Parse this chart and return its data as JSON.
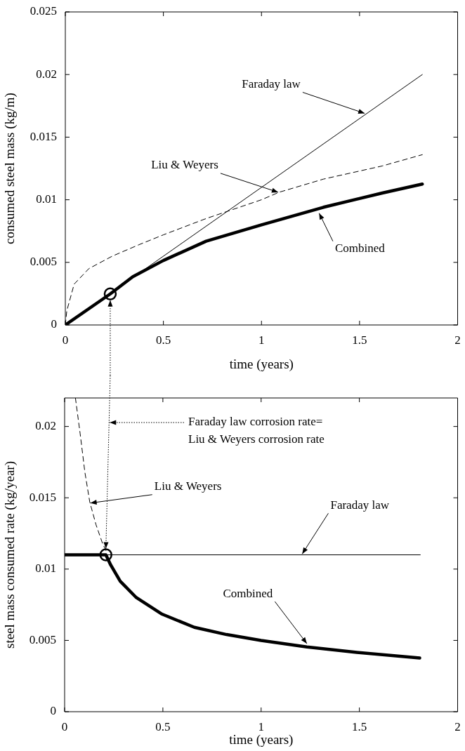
{
  "chart_data": [
    {
      "type": "line",
      "xlabel": "time (years)",
      "ylabel": "consumed steel mass (kg/m)",
      "xlim": [
        0,
        2
      ],
      "ylim": [
        0,
        0.025
      ],
      "xticks": [
        0,
        0.5,
        1,
        1.5,
        2
      ],
      "yticks": [
        0,
        0.005,
        0.01,
        0.015,
        0.02,
        0.025
      ],
      "grid": false,
      "legend": false,
      "series": [
        {
          "color": "#000000",
          "line_style": "solid",
          "marker": "none",
          "x": [
            0,
            1.82
          ],
          "values": [
            0,
            0.02
          ]
        },
        {
          "color": "#000000",
          "line_style": "dashed",
          "marker": "none",
          "x": [
            0,
            0.0075,
            0.045,
            0.12,
            0.24,
            0.374,
            0.5,
            0.718,
            1.0,
            1.09,
            1.316,
            1.616,
            1.82
          ],
          "values": [
            0,
            0.00113,
            0.00326,
            0.0045,
            0.0055,
            0.0064,
            0.0072,
            0.0085,
            0.01,
            0.0106,
            0.01165,
            0.0127,
            0.0136
          ]
        },
        {
          "color": "#000000",
          "line_style": "solid",
          "marker": "none",
          "x": [
            0,
            0.229,
            0.344,
            0.5,
            0.718,
            1.0,
            1.316,
            1.616,
            1.82
          ],
          "values": [
            0,
            0.00248,
            0.00385,
            0.00515,
            0.00669,
            0.00799,
            0.0094,
            0.01054,
            0.01125
          ]
        },
        {
          "type": "scatter",
          "color": "#000000",
          "marker": "circle",
          "x": [
            0.229
          ],
          "values": [
            0.00248
          ]
        }
      ],
      "annotations": [
        {
          "text": "Faraday law",
          "x": 1.526,
          "y": 0.0169
        },
        {
          "text": "Liu & Weyers",
          "x": 1.085,
          "y": 0.0106
        },
        {
          "text": "Combined",
          "x": 1.294,
          "y": 0.00893
        }
      ]
    },
    {
      "type": "line",
      "xlabel": "time (years)",
      "ylabel": "steel mass consumed rate (kg/year)",
      "xlim": [
        0,
        2
      ],
      "ylim": [
        0,
        0.022
      ],
      "xticks": [
        0,
        0.5,
        1,
        1.5,
        2
      ],
      "yticks": [
        0,
        0.005,
        0.01,
        0.015,
        0.02
      ],
      "grid": false,
      "legend": false,
      "series": [
        {
          "color": "#000000",
          "line_style": "solid",
          "marker": "none",
          "x": [
            0,
            1.81
          ],
          "values": [
            0.011,
            0.011
          ]
        },
        {
          "color": "#000000",
          "line_style": "dashed",
          "marker": "none",
          "x": [
            0.055,
            0.079,
            0.103,
            0.128,
            0.16,
            0.193,
            0.21
          ],
          "values": [
            0.022,
            0.0195,
            0.0168,
            0.0147,
            0.0131,
            0.0118,
            0.0113
          ]
        },
        {
          "color": "#000000",
          "line_style": "solid",
          "marker": "none",
          "x": [
            0,
            0.21,
            0.234,
            0.283,
            0.365,
            0.496,
            0.66,
            0.824,
            1.0,
            1.233,
            1.479,
            1.807
          ],
          "values": [
            0.011,
            0.011,
            0.0103,
            0.00915,
            0.008,
            0.00684,
            0.00592,
            0.00541,
            0.005,
            0.00454,
            0.00417,
            0.00376
          ]
        },
        {
          "type": "scatter",
          "color": "#000000",
          "marker": "circle",
          "x": [
            0.21
          ],
          "values": [
            0.011
          ]
        }
      ],
      "annotations": [
        "Faraday law corrosion rate=\nLiu & Weyers corrosion rate",
        {
          "text": "Liu & Weyers",
          "x": 0.131,
          "y": 0.01463
        },
        {
          "text": "Faraday law",
          "x": 1.209,
          "y": 0.01106
        },
        {
          "text": "Combined",
          "x": 1.233,
          "y": 0.00477
        }
      ]
    }
  ]
}
